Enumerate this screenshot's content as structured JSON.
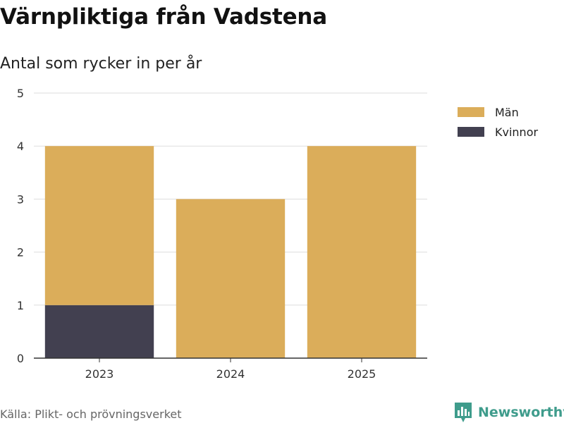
{
  "title": "Värnpliktiga från Vadstena",
  "subtitle": "Antal som rycker in per år",
  "source": "Källa: Plikt- och prövningsverket",
  "brand": "Newsworthy",
  "colors": {
    "man": "#dbad5a",
    "kvinnor": "#424050",
    "brand": "#3f9c8c",
    "grid": "#dddddd",
    "axis": "#333333"
  },
  "chart_data": {
    "type": "bar",
    "stacked": true,
    "categories": [
      "2023",
      "2024",
      "2025"
    ],
    "series": [
      {
        "name": "Kvinnor",
        "values": [
          1,
          0,
          0
        ],
        "color": "#424050"
      },
      {
        "name": "Män",
        "values": [
          3,
          3,
          4
        ],
        "color": "#dbad5a"
      }
    ],
    "legend": [
      "Män",
      "Kvinnor"
    ],
    "legend_placement": "top-right",
    "ylim": [
      0,
      5
    ],
    "yticks": [
      0,
      1,
      2,
      3,
      4,
      5
    ],
    "grid": true,
    "xlabel": "",
    "ylabel": ""
  }
}
